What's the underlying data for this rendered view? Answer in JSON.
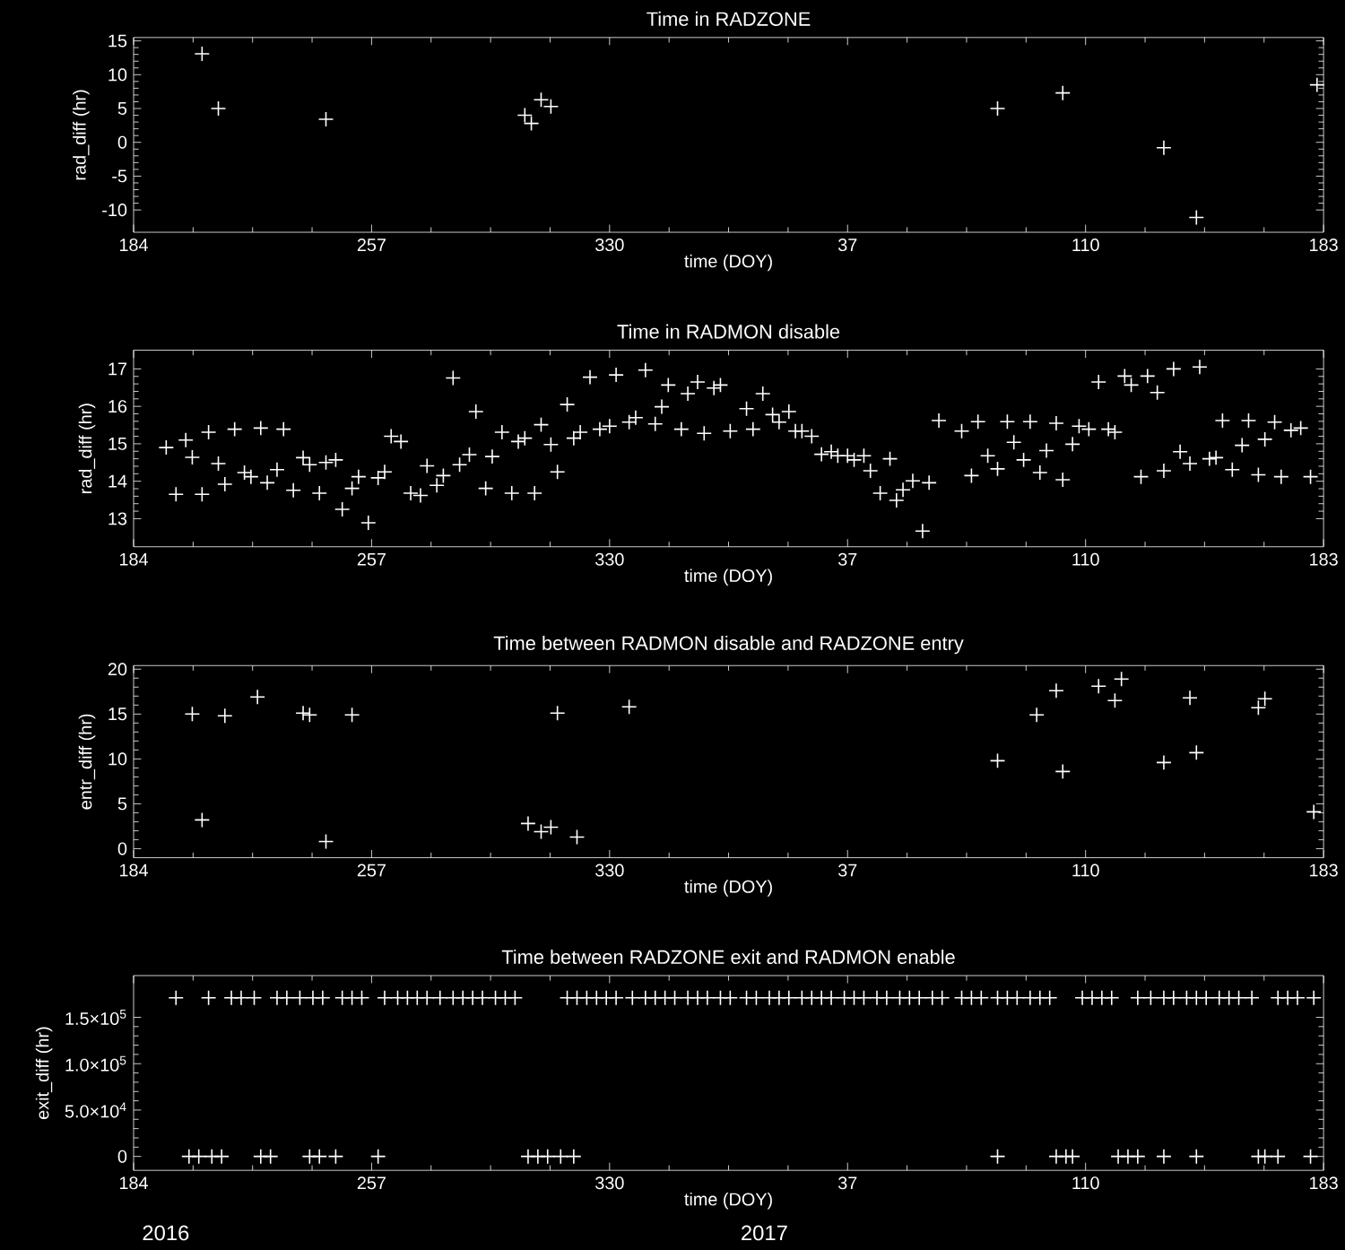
{
  "chart_data": [
    {
      "type": "scatter",
      "title": "Time in RADZONE",
      "xlabel": "time (DOY)",
      "ylabel": "rad_diff (hr)",
      "marker": "cross",
      "color": "#ffffff",
      "xlim": [
        "2016-07-02",
        "2017-07-02"
      ],
      "ylim": [
        -13.3,
        15.5
      ],
      "xticks": [
        {
          "value": "2016-07-02",
          "label": "184"
        },
        {
          "value": "2016-09-13",
          "label": "257"
        },
        {
          "value": "2016-11-25",
          "label": "330"
        },
        {
          "value": "2017-02-06",
          "label": "37"
        },
        {
          "value": "2017-04-20",
          "label": "110"
        },
        {
          "value": "2017-07-02",
          "label": "183"
        }
      ],
      "yticks": [
        -10,
        -5,
        0,
        5,
        10,
        15
      ],
      "x": [
        "2016-07-23",
        "2016-07-28",
        "2016-08-30",
        "2016-10-30",
        "2016-11-01",
        "2016-11-04",
        "2016-11-07",
        "2017-03-24",
        "2017-04-13",
        "2017-05-14",
        "2017-05-24",
        "2017-06-30"
      ],
      "values": [
        13.1,
        5.0,
        3.4,
        4.0,
        2.8,
        6.3,
        5.3,
        5.0,
        7.3,
        -0.8,
        -11.1,
        8.5
      ]
    },
    {
      "type": "scatter",
      "title": "Time in RADMON disable",
      "xlabel": "time (DOY)",
      "ylabel": "rad_diff (hr)",
      "marker": "cross",
      "color": "#ffffff",
      "xlim": [
        "2016-07-02",
        "2017-07-02"
      ],
      "ylim": [
        12.25,
        17.5
      ],
      "xticks": [
        {
          "value": "2016-07-02",
          "label": "184"
        },
        {
          "value": "2016-09-13",
          "label": "257"
        },
        {
          "value": "2016-11-25",
          "label": "330"
        },
        {
          "value": "2017-02-06",
          "label": "37"
        },
        {
          "value": "2017-04-20",
          "label": "110"
        },
        {
          "value": "2017-07-02",
          "label": "183"
        }
      ],
      "yticks": [
        13,
        14,
        15,
        16,
        17
      ],
      "x": [
        "2016-07-12",
        "2016-07-15",
        "2016-07-18",
        "2016-07-20",
        "2016-07-23",
        "2016-07-25",
        "2016-07-28",
        "2016-07-30",
        "2016-08-02",
        "2016-08-05",
        "2016-08-07",
        "2016-08-10",
        "2016-08-12",
        "2016-08-15",
        "2016-08-17",
        "2016-08-20",
        "2016-08-23",
        "2016-08-25",
        "2016-08-28",
        "2016-08-30",
        "2016-09-02",
        "2016-09-04",
        "2016-09-07",
        "2016-09-09",
        "2016-09-12",
        "2016-09-15",
        "2016-09-17",
        "2016-09-19",
        "2016-09-22",
        "2016-09-25",
        "2016-09-28",
        "2016-09-30",
        "2016-10-03",
        "2016-10-05",
        "2016-10-08",
        "2016-10-10",
        "2016-10-13",
        "2016-10-15",
        "2016-10-18",
        "2016-10-20",
        "2016-10-23",
        "2016-10-26",
        "2016-10-28",
        "2016-10-30",
        "2016-11-02",
        "2016-11-04",
        "2016-11-07",
        "2016-11-09",
        "2016-11-12",
        "2016-11-14",
        "2016-11-16",
        "2016-11-19",
        "2016-11-22",
        "2016-11-25",
        "2016-11-27",
        "2016-12-01",
        "2016-12-03",
        "2016-12-06",
        "2016-12-09",
        "2016-12-11",
        "2016-12-13",
        "2016-12-17",
        "2016-12-19",
        "2016-12-22",
        "2016-12-24",
        "2016-12-27",
        "2016-12-29",
        "2017-01-01",
        "2017-01-06",
        "2017-01-08",
        "2017-01-11",
        "2017-01-14",
        "2017-01-16",
        "2017-01-19",
        "2017-01-21",
        "2017-01-23",
        "2017-01-26",
        "2017-01-29",
        "2017-02-01",
        "2017-02-03",
        "2017-02-06",
        "2017-02-08",
        "2017-02-11",
        "2017-02-13",
        "2017-02-16",
        "2017-02-19",
        "2017-02-21",
        "2017-02-23",
        "2017-02-26",
        "2017-03-01",
        "2017-03-03",
        "2017-03-06",
        "2017-03-13",
        "2017-03-16",
        "2017-03-18",
        "2017-03-21",
        "2017-03-24",
        "2017-03-27",
        "2017-03-29",
        "2017-04-01",
        "2017-04-03",
        "2017-04-06",
        "2017-04-08",
        "2017-04-11",
        "2017-04-13",
        "2017-04-16",
        "2017-04-18",
        "2017-04-21",
        "2017-04-24",
        "2017-04-27",
        "2017-04-29",
        "2017-05-02",
        "2017-05-04",
        "2017-05-07",
        "2017-05-09",
        "2017-05-12",
        "2017-05-14",
        "2017-05-17",
        "2017-05-19",
        "2017-05-22",
        "2017-05-25",
        "2017-05-28",
        "2017-05-30",
        "2017-06-01",
        "2017-06-04",
        "2017-06-07",
        "2017-06-09",
        "2017-06-12",
        "2017-06-14",
        "2017-06-17",
        "2017-06-19",
        "2017-06-22",
        "2017-06-25",
        "2017-06-28"
      ],
      "values": [
        14.9,
        13.65,
        15.1,
        14.64,
        13.65,
        15.31,
        14.47,
        13.92,
        15.39,
        14.23,
        14.12,
        15.42,
        13.96,
        14.31,
        15.39,
        13.76,
        14.63,
        14.44,
        13.68,
        14.5,
        14.57,
        13.25,
        13.81,
        14.12,
        12.89,
        14.09,
        14.25,
        15.2,
        15.06,
        13.68,
        13.62,
        14.41,
        13.89,
        14.15,
        16.76,
        14.44,
        14.71,
        15.86,
        13.81,
        14.66,
        15.31,
        13.68,
        15.06,
        15.15,
        13.68,
        15.51,
        14.98,
        14.25,
        16.05,
        15.15,
        15.31,
        16.78,
        15.39,
        15.47,
        16.84,
        15.58,
        15.7,
        16.97,
        15.53,
        15.99,
        16.57,
        15.39,
        16.34,
        16.65,
        15.28,
        16.49,
        16.57,
        15.34,
        15.94,
        15.39,
        16.34,
        15.78,
        15.58,
        15.86,
        15.34,
        15.34,
        15.2,
        14.72,
        14.79,
        14.68,
        14.68,
        14.57,
        14.68,
        14.28,
        13.68,
        14.6,
        13.49,
        13.77,
        14.01,
        12.67,
        13.96,
        15.62,
        15.34,
        14.15,
        15.59,
        14.68,
        14.33,
        15.59,
        15.04,
        14.57,
        15.59,
        14.23,
        14.82,
        15.55,
        14.04,
        14.99,
        15.47,
        15.39,
        16.65,
        15.39,
        15.31,
        16.81,
        16.57,
        14.12,
        16.81,
        16.37,
        14.28,
        17.0,
        14.79,
        14.47,
        17.05,
        14.6,
        14.63,
        15.62,
        14.31,
        14.96,
        15.62,
        14.17,
        15.12,
        15.58,
        14.12,
        15.36,
        15.42,
        14.12
      ]
    },
    {
      "type": "scatter",
      "title": "Time between RADMON disable and RADZONE entry",
      "xlabel": "time (DOY)",
      "ylabel": "entr_diff (hr)",
      "marker": "cross",
      "color": "#ffffff",
      "xlim": [
        "2016-07-02",
        "2017-07-02"
      ],
      "ylim": [
        -1,
        20.4
      ],
      "xticks": [
        {
          "value": "2016-07-02",
          "label": "184"
        },
        {
          "value": "2016-09-13",
          "label": "257"
        },
        {
          "value": "2016-11-25",
          "label": "330"
        },
        {
          "value": "2017-02-06",
          "label": "37"
        },
        {
          "value": "2017-04-20",
          "label": "110"
        },
        {
          "value": "2017-07-02",
          "label": "183"
        }
      ],
      "yticks": [
        0,
        5,
        10,
        15,
        20
      ],
      "x": [
        "2016-07-20",
        "2016-07-23",
        "2016-07-30",
        "2016-08-09",
        "2016-08-23",
        "2016-08-25",
        "2016-08-30",
        "2016-09-07",
        "2016-10-31",
        "2016-11-04",
        "2016-11-07",
        "2016-11-09",
        "2016-11-15",
        "2016-12-01",
        "2017-03-24",
        "2017-04-05",
        "2017-04-11",
        "2017-04-13",
        "2017-04-24",
        "2017-04-29",
        "2017-05-01",
        "2017-05-14",
        "2017-05-22",
        "2017-05-24",
        "2017-06-12",
        "2017-06-14",
        "2017-06-29"
      ],
      "values": [
        15.0,
        3.2,
        14.8,
        16.9,
        15.1,
        14.9,
        0.8,
        14.9,
        2.8,
        1.9,
        2.4,
        15.1,
        1.3,
        15.8,
        9.8,
        14.9,
        17.6,
        8.6,
        18.1,
        16.5,
        18.9,
        9.6,
        16.8,
        10.7,
        15.7,
        16.7,
        4.1
      ]
    },
    {
      "type": "scatter",
      "title": "Time between RADZONE exit and RADMON enable",
      "xlabel": "time (DOY)",
      "ylabel": "exit_diff (hr)",
      "marker": "cross",
      "color": "#ffffff",
      "xlim": [
        "2016-07-02",
        "2017-07-02"
      ],
      "ylim": [
        -15000,
        195000
      ],
      "xticks": [
        {
          "value": "2016-07-02",
          "label": "184"
        },
        {
          "value": "2016-09-13",
          "label": "257"
        },
        {
          "value": "2016-11-25",
          "label": "330"
        },
        {
          "value": "2017-02-06",
          "label": "37"
        },
        {
          "value": "2017-04-20",
          "label": "110"
        },
        {
          "value": "2017-07-02",
          "label": "183"
        }
      ],
      "yticks": [
        0,
        {
          "value": 50000,
          "label": "5.0×10$^{4}$"
        },
        {
          "value": 100000,
          "label": "1.0×10$^{5}$"
        },
        {
          "value": 150000,
          "label": "1.5×10$^{5}$"
        }
      ],
      "annotations": [
        "2016",
        "2017"
      ],
      "x": [
        "2016-07-15",
        "2016-07-25",
        "2016-08-01",
        "2016-08-04",
        "2016-08-08",
        "2016-08-15",
        "2016-08-18",
        "2016-08-22",
        "2016-08-26",
        "2016-08-29",
        "2016-09-04",
        "2016-09-07",
        "2016-09-10",
        "2016-09-17",
        "2016-09-21",
        "2016-09-24",
        "2016-09-27",
        "2016-09-30",
        "2016-10-04",
        "2016-10-08",
        "2016-10-11",
        "2016-10-14",
        "2016-10-17",
        "2016-10-21",
        "2016-10-24",
        "2016-10-27",
        "2016-11-12",
        "2016-11-15",
        "2016-11-18",
        "2016-11-21",
        "2016-11-24",
        "2016-11-27",
        "2016-12-02",
        "2016-12-06",
        "2016-12-09",
        "2016-12-12",
        "2016-12-15",
        "2016-12-19",
        "2016-12-22",
        "2016-12-25",
        "2016-12-29",
        "2017-01-01",
        "2017-01-06",
        "2017-01-09",
        "2017-01-13",
        "2017-01-16",
        "2017-01-19",
        "2017-01-23",
        "2017-01-26",
        "2017-01-29",
        "2017-02-01",
        "2017-02-05",
        "2017-02-08",
        "2017-02-11",
        "2017-02-15",
        "2017-02-18",
        "2017-02-22",
        "2017-02-25",
        "2017-02-28",
        "2017-03-04",
        "2017-03-07",
        "2017-03-13",
        "2017-03-16",
        "2017-03-19",
        "2017-03-24",
        "2017-03-27",
        "2017-03-30",
        "2017-04-03",
        "2017-04-06",
        "2017-04-09",
        "2017-04-19",
        "2017-04-22",
        "2017-04-25",
        "2017-04-28",
        "2017-05-06",
        "2017-05-10",
        "2017-05-14",
        "2017-05-17",
        "2017-05-21",
        "2017-05-24",
        "2017-05-27",
        "2017-05-31",
        "2017-06-03",
        "2017-06-06",
        "2017-06-10",
        "2017-06-18",
        "2017-06-21",
        "2017-06-24",
        "2017-06-29",
        "2016-07-19",
        "2016-07-22",
        "2016-07-26",
        "2016-07-29",
        "2016-08-10",
        "2016-08-13",
        "2016-08-25",
        "2016-08-28",
        "2016-09-02",
        "2016-09-15",
        "2016-10-31",
        "2016-11-03",
        "2016-11-06",
        "2016-11-10",
        "2016-11-14",
        "2017-03-24",
        "2017-04-11",
        "2017-04-14",
        "2017-04-16",
        "2017-04-30",
        "2017-05-03",
        "2017-05-06",
        "2017-05-14",
        "2017-05-24",
        "2017-06-12",
        "2017-06-14",
        "2017-06-18",
        "2017-06-28"
      ],
      "values": [
        171000,
        171000,
        171000,
        171000,
        171000,
        171000,
        171000,
        171000,
        171000,
        171000,
        171000,
        171000,
        171000,
        171000,
        171000,
        171000,
        171000,
        171000,
        171000,
        171000,
        171000,
        171000,
        171000,
        171000,
        171000,
        171000,
        171000,
        171000,
        171000,
        171000,
        171000,
        171000,
        171000,
        171000,
        171000,
        171000,
        171000,
        171000,
        171000,
        171000,
        171000,
        171000,
        171000,
        171000,
        171000,
        171000,
        171000,
        171000,
        171000,
        171000,
        171000,
        171000,
        171000,
        171000,
        171000,
        171000,
        171000,
        171000,
        171000,
        171000,
        171000,
        171000,
        171000,
        171000,
        171000,
        171000,
        171000,
        171000,
        171000,
        171000,
        171000,
        171000,
        171000,
        171000,
        171000,
        171000,
        171000,
        171000,
        171000,
        171000,
        171000,
        171000,
        171000,
        171000,
        171000,
        171000,
        171000,
        171000,
        171000,
        0,
        0,
        0,
        0,
        0,
        0,
        0,
        0,
        0,
        0,
        0,
        0,
        0,
        0,
        0,
        0,
        0,
        0,
        0,
        0,
        0,
        0,
        0,
        0,
        0,
        0,
        0,
        0
      ]
    }
  ]
}
